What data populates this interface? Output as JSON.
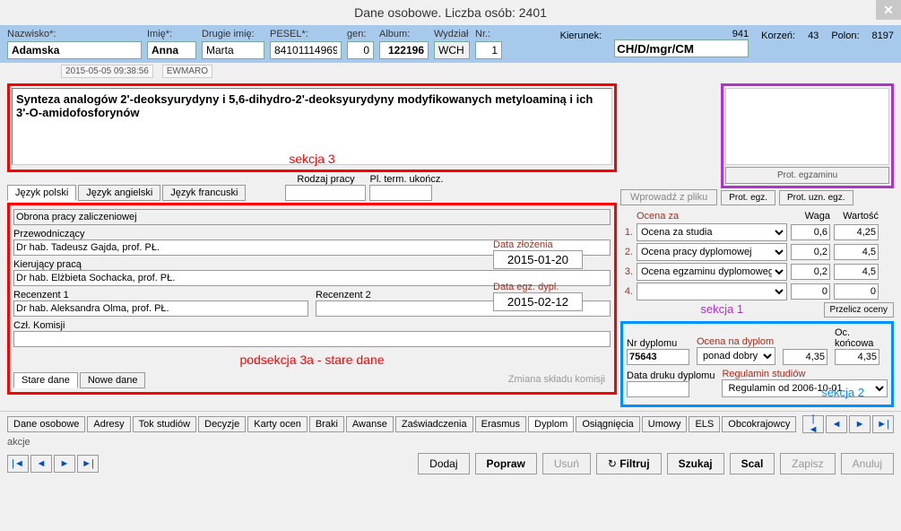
{
  "window": {
    "title": "Dane osobowe. Liczba osób: 2401"
  },
  "header": {
    "nazwisko_lbl": "Nazwisko*:",
    "nazwisko": "Adamska",
    "imie_lbl": "Imię*:",
    "imie": "Anna",
    "drugie_lbl": "Drugie imię:",
    "drugie": "Marta",
    "pesel_lbl": "PESEL*:",
    "pesel": "84101114969",
    "gen_lbl": "gen:",
    "gen": "0",
    "album_lbl": "Album:",
    "album": "122196",
    "wydzial_lbl": "Wydział",
    "wydzial": "WCH",
    "nr_lbl": "Nr.:",
    "nr": "1",
    "kierunek_lbl": "Kierunek:",
    "kierunek_n": "941",
    "kierunek": "CH/D/mgr/CM",
    "korzen_lbl": "Korzeń:",
    "korzen": "43",
    "polon_lbl": "Polon:",
    "polon": "8197"
  },
  "timestamp": {
    "ts": "2015-05-05 09:38:56",
    "user": "EWMARO"
  },
  "section3": {
    "label": "sekcja 3",
    "topic": "Synteza analogów 2'-deoksyurydyny i 5,6-dihydro-2'-deoksyurydyny modyfikowanych metyloaminą i ich 3'-O-amidofosforynów",
    "tabs": [
      "Język polski",
      "Język angielski",
      "Język francuski"
    ],
    "rodzaj_lbl": "Rodzaj pracy",
    "pltermin_lbl": "Pl. term. ukończ.",
    "intro_btn": "Wprowadź z pliku"
  },
  "sub3a": {
    "obrona_lbl": "Obrona pracy zaliczeniowej",
    "przew_lbl": "Przewodniczący",
    "przew": "Dr hab. Tadeusz Gajda, prof. PŁ.",
    "kier_lbl": "Kierujący pracą",
    "kier": "Dr hab. Elżbieta Sochacka, prof. PŁ.",
    "rec1_lbl": "Recenzent 1",
    "rec1": "Dr hab. Aleksandra Olma, prof. PŁ.",
    "rec2_lbl": "Recenzent 2",
    "rec2": "",
    "czl_lbl": "Czł. Komisji",
    "label": "podsekcja 3a - stare dane",
    "tabs": [
      "Stare dane",
      "Nowe dane"
    ],
    "zsk": "Zmiana składu komisji"
  },
  "dates": {
    "zloz_lbl": "Data złożenia",
    "zloz": "2015-01-20",
    "egz_lbl": "Data egz. dypl.",
    "egz": "2015-02-12"
  },
  "section1": {
    "label": "sekcja 1",
    "prot_egz_big": "Prot. egzaminu",
    "prot_egz": "Prot. egz.",
    "prot_uzn": "Prot. uzn. egz.",
    "ocenaza_lbl": "Ocena za",
    "waga_lbl": "Waga",
    "wartosc_lbl": "Wartość",
    "rows": [
      {
        "n": "1.",
        "name": "Ocena za studia",
        "waga": "0,6",
        "wart": "4,25"
      },
      {
        "n": "2.",
        "name": "Ocena pracy dyplomowej",
        "waga": "0,2",
        "wart": "4,5"
      },
      {
        "n": "3.",
        "name": "Ocena egzaminu dyplomowego",
        "waga": "0,2",
        "wart": "4,5"
      },
      {
        "n": "4.",
        "name": "",
        "waga": "0",
        "wart": "0"
      }
    ],
    "recalc": "Przelicz oceny"
  },
  "section2": {
    "label": "sekcja 2",
    "nrdypl_lbl": "Nr dyplomu",
    "nrdypl": "75643",
    "ocenadypl_lbl": "Ocena na dyplom",
    "ocenadypl_val": "4,35",
    "ocenadypl_sel": "ponad dobry",
    "ockon_lbl": "Oc. końcowa",
    "ockon": "4,35",
    "datadruku_lbl": "Data druku dyplomu",
    "datadruku": "",
    "reg_lbl": "Regulamin studiów",
    "reg": "Regulamin od 2006-10-01"
  },
  "bottom_tabs": [
    "Dane osobowe",
    "Adresy",
    "Tok studiów",
    "Decyzje",
    "Karty ocen",
    "Braki",
    "Awanse",
    "Zaświadczenia",
    "Erasmus",
    "Dyplom",
    "Osiągnięcia",
    "Umowy",
    "ELS",
    "Obcokrajowcy"
  ],
  "active_tab": 9,
  "akcje": "akcje",
  "footer": {
    "dodaj": "Dodaj",
    "popraw": "Popraw",
    "usun": "Usuń",
    "filtruj": "Filtruj",
    "szukaj": "Szukaj",
    "scal": "Scal",
    "zapisz": "Zapisz",
    "anuluj": "Anuluj"
  }
}
